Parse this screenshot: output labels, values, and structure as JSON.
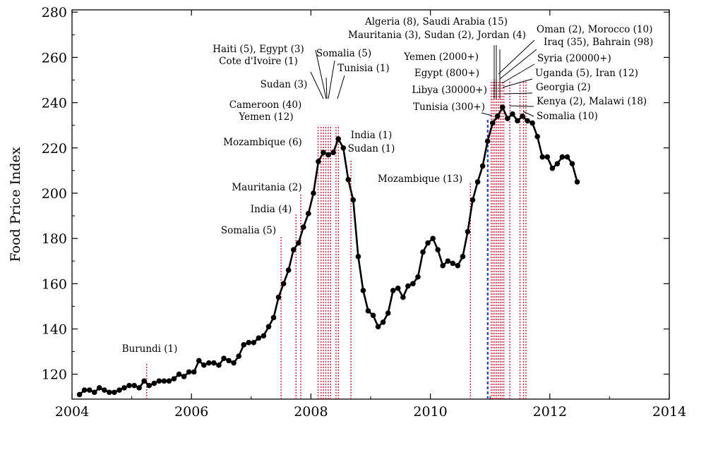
{
  "chart_data": {
    "type": "line",
    "title": "",
    "xlabel": "",
    "ylabel": "Food Price Index",
    "xlim": [
      2004,
      2014
    ],
    "ylim": [
      109,
      281
    ],
    "x_ticks": [
      2004,
      2006,
      2008,
      2010,
      2012,
      2014
    ],
    "y_ticks": [
      120,
      140,
      160,
      180,
      200,
      220,
      240,
      260,
      280
    ],
    "grid": false,
    "series": [
      {
        "x": [
          2004.125,
          2004.208,
          2004.292,
          2004.375,
          2004.458,
          2004.542,
          2004.625,
          2004.708,
          2004.792,
          2004.875,
          2004.958,
          2005.042,
          2005.125,
          2005.208,
          2005.292,
          2005.375,
          2005.458,
          2005.542,
          2005.625,
          2005.708,
          2005.792,
          2005.875,
          2005.958,
          2006.042,
          2006.125,
          2006.208,
          2006.292,
          2006.375,
          2006.458,
          2006.542,
          2006.625,
          2006.708,
          2006.792,
          2006.875,
          2006.958,
          2007.042,
          2007.125,
          2007.208,
          2007.292,
          2007.375,
          2007.458,
          2007.542,
          2007.625,
          2007.708,
          2007.792,
          2007.875,
          2007.958,
          2008.042,
          2008.125,
          2008.208,
          2008.292,
          2008.375,
          2008.458,
          2008.542,
          2008.625,
          2008.708,
          2008.792,
          2008.875,
          2008.958,
          2009.042,
          2009.125,
          2009.208,
          2009.292,
          2009.375,
          2009.458,
          2009.542,
          2009.625,
          2009.708,
          2009.792,
          2009.875,
          2009.958,
          2010.042,
          2010.125,
          2010.208,
          2010.292,
          2010.375,
          2010.458,
          2010.542,
          2010.625,
          2010.708,
          2010.792,
          2010.875,
          2010.958,
          2011.042,
          2011.125,
          2011.208,
          2011.292,
          2011.375,
          2011.458,
          2011.542,
          2011.625,
          2011.708,
          2011.792,
          2011.875,
          2011.958,
          2012.042,
          2012.125,
          2012.208,
          2012.292,
          2012.375,
          2012.458
        ],
        "values": [
          111,
          113,
          113,
          112,
          114,
          113,
          112,
          112,
          113,
          114,
          115,
          115,
          114,
          117,
          115,
          116,
          117,
          117,
          117,
          118,
          120,
          119,
          121,
          121,
          126,
          124,
          125,
          125,
          124,
          127,
          126,
          125,
          128,
          133,
          134,
          134,
          136,
          137,
          141,
          145,
          154,
          160,
          166,
          175,
          178,
          185,
          191,
          200,
          214,
          218,
          217,
          218,
          224,
          220,
          206,
          197,
          172,
          157,
          148,
          146,
          141,
          143,
          147,
          157,
          158,
          154,
          159,
          160,
          163,
          174,
          178,
          180,
          175,
          168,
          170,
          169,
          168,
          172,
          183,
          197,
          205,
          212,
          223,
          231,
          234,
          238,
          233,
          235,
          232,
          234,
          232,
          231,
          225,
          216,
          216,
          211,
          213,
          216,
          216,
          213,
          205
        ]
      }
    ],
    "vlines_red": [
      2005.25,
      2007.5,
      2007.75,
      2007.83,
      2008.12,
      2008.17,
      2008.21,
      2008.25,
      2008.29,
      2008.33,
      2008.42,
      2008.46,
      2008.67,
      2010.67,
      2011.02,
      2011.05,
      2011.08,
      2011.11,
      2011.14,
      2011.17,
      2011.2,
      2011.23,
      2011.33,
      2011.5,
      2011.56,
      2011.6
    ],
    "vline_blue": 2010.96,
    "annotations": [
      {
        "text": "Burundi (1)"
      },
      {
        "text": "Somalia (5)"
      },
      {
        "text": "India (4)"
      },
      {
        "text": "Mauritania (2)"
      },
      {
        "text": "Mozambique (6)"
      },
      {
        "text": "Yemen (12)"
      },
      {
        "text": "Cameroon (40)"
      },
      {
        "text": "Sudan (3)"
      },
      {
        "text": "Cote d'Ivoire (1)"
      },
      {
        "text": "Haiti (5), Egypt (3)"
      },
      {
        "text": "Somalia (5)"
      },
      {
        "text": "Tunisia (1)"
      },
      {
        "text": "India (1)"
      },
      {
        "text": "Sudan (1)"
      },
      {
        "text": "Mozambique (13)"
      },
      {
        "text": "Tunisia (300+)"
      },
      {
        "text": "Libya (30000+)"
      },
      {
        "text": "Egypt (800+)"
      },
      {
        "text": "Yemen (2000+)"
      },
      {
        "text": "Mauritania (3), Sudan (2), Jordan (4)"
      },
      {
        "text": "Algeria (8), Saudi Arabia (15)"
      },
      {
        "text": "Oman (2), Morocco (10)"
      },
      {
        "text": "Iraq (35), Bahrain (98)"
      },
      {
        "text": "Syria (20000+)"
      },
      {
        "text": "Uganda (5), Iran (12)"
      },
      {
        "text": "Georgia (2)"
      },
      {
        "text": "Kenya (2), Malawi (18)"
      },
      {
        "text": "Somalia (10)"
      }
    ]
  }
}
